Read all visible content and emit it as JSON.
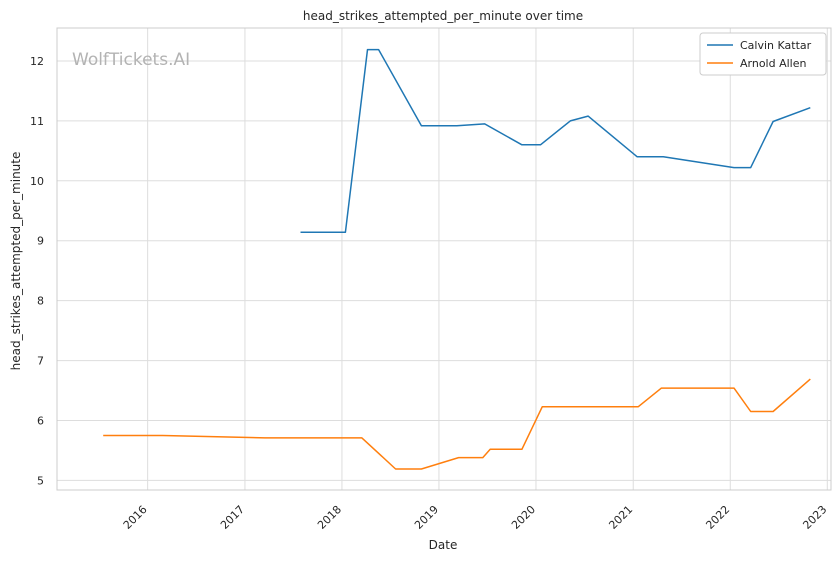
{
  "watermark": "WolfTickets.AI",
  "chart_data": {
    "type": "line",
    "title": "head_strikes_attempted_per_minute over time",
    "xlabel": "Date",
    "ylabel": "head_strikes_attempted_per_minute",
    "xlim": [
      "2015-01-25",
      "2023-01-15"
    ],
    "ylim": [
      4.84,
      12.55
    ],
    "x_ticks": [
      "2016",
      "2017",
      "2018",
      "2019",
      "2020",
      "2021",
      "2022",
      "2023"
    ],
    "y_ticks": [
      5,
      6,
      7,
      8,
      9,
      10,
      11,
      12
    ],
    "grid": true,
    "legend_position": "top-right",
    "series": [
      {
        "name": "Calvin Kattar",
        "color": "#1f77b4",
        "points": [
          [
            "2017-07-29",
            9.14
          ],
          [
            "2018-01-14",
            9.14
          ],
          [
            "2018-04-07",
            12.19
          ],
          [
            "2018-05-19",
            12.19
          ],
          [
            "2018-10-27",
            10.92
          ],
          [
            "2019-03-09",
            10.92
          ],
          [
            "2019-06-22",
            10.95
          ],
          [
            "2019-11-09",
            10.6
          ],
          [
            "2020-01-18",
            10.6
          ],
          [
            "2020-05-09",
            11.0
          ],
          [
            "2020-07-15",
            11.08
          ],
          [
            "2021-01-16",
            10.4
          ],
          [
            "2021-04-24",
            10.4
          ],
          [
            "2022-01-15",
            10.22
          ],
          [
            "2022-03-19",
            10.22
          ],
          [
            "2022-06-11",
            10.99
          ],
          [
            "2022-10-29",
            11.22
          ]
        ]
      },
      {
        "name": "Arnold Allen",
        "color": "#ff7f0e",
        "points": [
          [
            "2015-07-18",
            5.75
          ],
          [
            "2016-02-27",
            5.75
          ],
          [
            "2017-03-18",
            5.71
          ],
          [
            "2018-03-17",
            5.71
          ],
          [
            "2018-07-22",
            5.19
          ],
          [
            "2018-10-27",
            5.19
          ],
          [
            "2019-03-16",
            5.38
          ],
          [
            "2019-06-15",
            5.38
          ],
          [
            "2019-07-13",
            5.52
          ],
          [
            "2019-11-09",
            5.52
          ],
          [
            "2020-01-25",
            6.23
          ],
          [
            "2021-01-20",
            6.23
          ],
          [
            "2021-04-17",
            6.54
          ],
          [
            "2022-01-15",
            6.54
          ],
          [
            "2022-03-19",
            6.15
          ],
          [
            "2022-06-11",
            6.15
          ],
          [
            "2022-10-29",
            6.69
          ]
        ]
      }
    ]
  }
}
